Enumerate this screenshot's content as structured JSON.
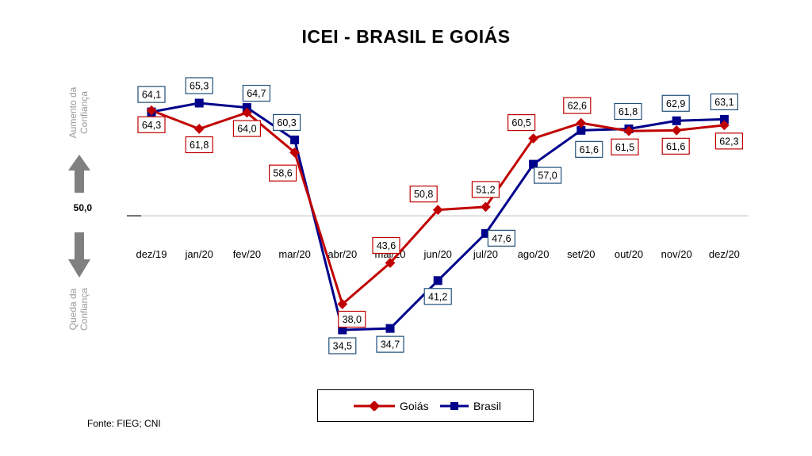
{
  "title": "ICEI - BRASIL E GOIÁS",
  "source": "Fonte: FIEG; CNI",
  "side_labels": {
    "up": [
      "Aumento da",
      "Confiança"
    ],
    "down": [
      "Queda da",
      "Confiança"
    ]
  },
  "reference_line": {
    "value": 50.0,
    "label": "50,0"
  },
  "colors": {
    "Goiás": "#c00000",
    "Brasil": "#00008b",
    "arrow": "#808080"
  },
  "chart_data": {
    "type": "line",
    "title": "ICEI - BRASIL E GOIÁS",
    "categories": [
      "dez/19",
      "jan/20",
      "fev/20",
      "mar/20",
      "abr/20",
      "mai/20",
      "jun/20",
      "jul/20",
      "ago/20",
      "set/20",
      "out/20",
      "nov/20",
      "dez/20"
    ],
    "series": [
      {
        "name": "Goiás",
        "values": [
          64.3,
          61.8,
          64.0,
          58.6,
          38.0,
          43.6,
          50.8,
          51.2,
          60.5,
          62.6,
          61.5,
          61.6,
          62.3
        ],
        "labels": [
          "64,3",
          "61,8",
          "64,0",
          "58,6",
          "38,0",
          "43,6",
          "50,8",
          "51,2",
          "60,5",
          "62,6",
          "61,5",
          "61,6",
          "62,3"
        ]
      },
      {
        "name": "Brasil",
        "values": [
          64.1,
          65.3,
          64.7,
          60.3,
          34.5,
          34.7,
          41.2,
          47.6,
          57.0,
          61.6,
          61.8,
          62.9,
          63.1
        ],
        "labels": [
          "64,1",
          "65,3",
          "64,7",
          "60,3",
          "34,5",
          "34,7",
          "41,2",
          "47,6",
          "57,0",
          "61,6",
          "61,8",
          "62,9",
          "63,1"
        ]
      }
    ],
    "legend_position": "bottom",
    "grid": false
  }
}
